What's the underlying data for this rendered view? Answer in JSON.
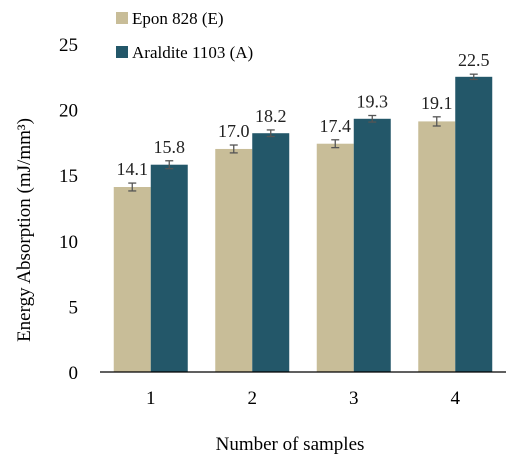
{
  "chart_data": {
    "type": "bar",
    "title": "",
    "xlabel": "Number of samples",
    "ylabel": "Energy Absorption (mJ/mm³)",
    "categories": [
      "1",
      "2",
      "3",
      "4"
    ],
    "ylim": [
      0,
      25
    ],
    "yticks": [
      0,
      5,
      10,
      15,
      20,
      25
    ],
    "grid": false,
    "legend_position": "top-left",
    "series": [
      {
        "name": "Epon 828 (E)",
        "color": "#c8bd98",
        "values": [
          14.1,
          17.0,
          17.4,
          19.1
        ],
        "errors": [
          0.3,
          0.3,
          0.3,
          0.35
        ],
        "labels": [
          "14.1",
          "17.0",
          "17.4",
          "19.1"
        ]
      },
      {
        "name": "Araldite 1103 (A)",
        "color": "#235769",
        "values": [
          15.8,
          18.2,
          19.3,
          22.5
        ],
        "errors": [
          0.3,
          0.25,
          0.25,
          0.2
        ],
        "labels": [
          "15.8",
          "18.2",
          "19.3",
          "22.5"
        ]
      }
    ]
  }
}
